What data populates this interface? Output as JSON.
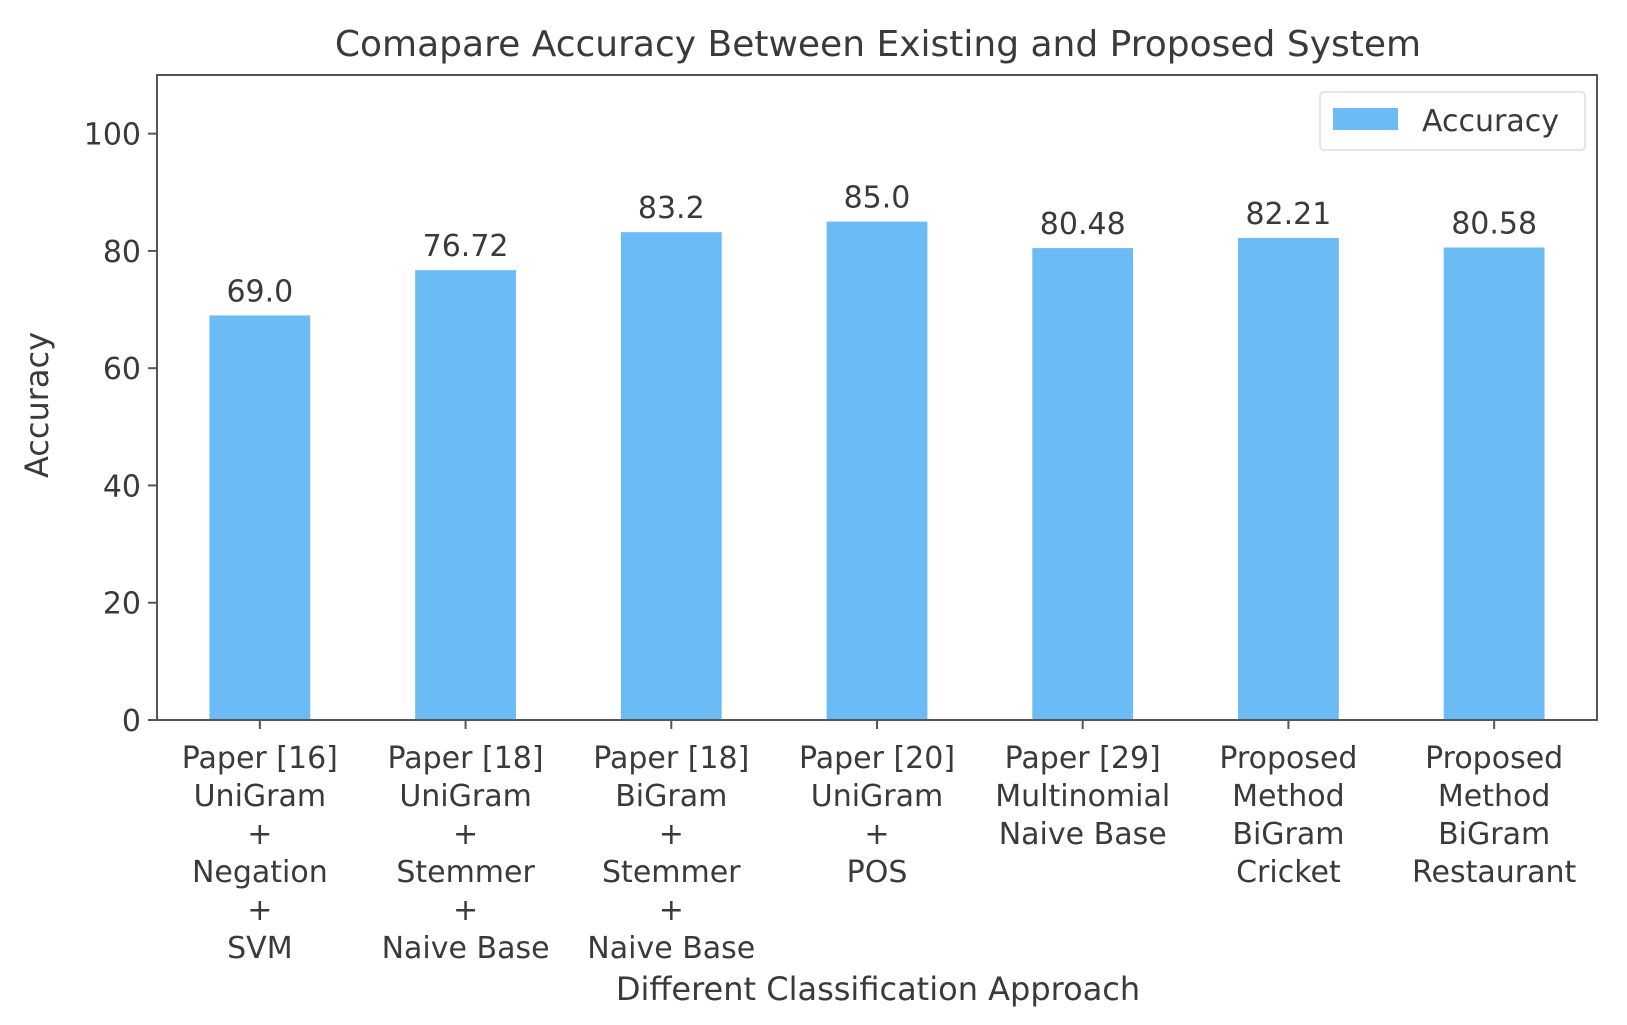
{
  "chart_data": {
    "type": "bar",
    "title": "Comapare Accuracy Between Existing and Proposed System",
    "xlabel": "Different Classification Approach",
    "ylabel": "Accuracy",
    "ylim": [
      0,
      110
    ],
    "yticks": [
      "0",
      "20",
      "40",
      "60",
      "80",
      "100"
    ],
    "categories": [
      [
        "Paper [16]",
        "UniGram",
        "+",
        "Negation",
        "+",
        "SVM"
      ],
      [
        "Paper [18]",
        "UniGram",
        "+",
        "Stemmer",
        "+",
        "Naive Base"
      ],
      [
        "Paper [18]",
        "BiGram",
        "+",
        "Stemmer",
        "+",
        "Naive Base"
      ],
      [
        "Paper [20]",
        "UniGram",
        "+",
        "POS"
      ],
      [
        "Paper [29]",
        "Multinomial",
        "Naive Base"
      ],
      [
        "Proposed",
        "Method",
        "BiGram",
        "Cricket"
      ],
      [
        "Proposed",
        "Method",
        "BiGram",
        "Restaurant"
      ]
    ],
    "series": [
      {
        "name": "Accuracy",
        "values": [
          69.0,
          76.72,
          83.2,
          85.0,
          80.48,
          82.21,
          80.58
        ],
        "labels": [
          "69.0",
          "76.72",
          "83.2",
          "85.0",
          "80.48",
          "82.21",
          "80.58"
        ]
      }
    ],
    "legend_position": "top-right",
    "grid": false,
    "colors": {
      "bar": "#6bbcf5",
      "axis": "#555555",
      "text": "#3a3a3a"
    }
  }
}
